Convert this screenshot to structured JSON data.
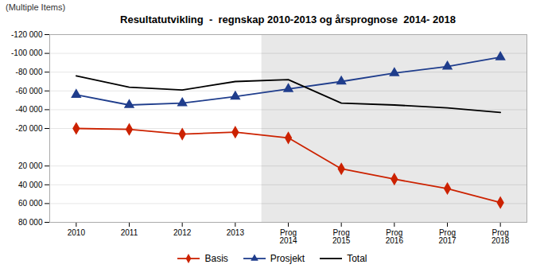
{
  "chart_data": {
    "type": "line",
    "title": "Resultatutvikling  -  regnskap 2010-2013 og årsprognose  2014- 2018",
    "subtitle": "(Multiple Items)",
    "categories": [
      "2010",
      "2011",
      "2012",
      "2013",
      "Prog\n2014",
      "Prog\n2015",
      "Prog\n2016",
      "Prog\n2017",
      "Prog\n2018"
    ],
    "series": [
      {
        "name": "Basis",
        "color": "#cc2200",
        "marker": "diamond",
        "values": [
          -20000,
          -19000,
          -14000,
          -16000,
          -10000,
          23000,
          34000,
          44000,
          59000
        ]
      },
      {
        "name": "Prosjekt",
        "color": "#1f3d8c",
        "marker": "triangle",
        "values": [
          -56000,
          -45000,
          -47000,
          -54000,
          -62000,
          -70000,
          -79000,
          -86000,
          -96000
        ]
      },
      {
        "name": "Total",
        "color": "#000000",
        "values": [
          -76000,
          -64000,
          -61000,
          -70000,
          -72000,
          -47000,
          -45000,
          -42000,
          -37000
        ]
      }
    ],
    "ylim": [
      80000,
      -120000
    ],
    "yticks": [
      {
        "value": -120000,
        "label": "-120 000"
      },
      {
        "value": -100000,
        "label": "-100 000"
      },
      {
        "value": -80000,
        "label": "-80 000"
      },
      {
        "value": -60000,
        "label": "-60 000"
      },
      {
        "value": -40000,
        "label": "-40 000"
      },
      {
        "value": -20000,
        "label": "-20 000"
      },
      {
        "value": 20000,
        "label": "20 000"
      },
      {
        "value": 40000,
        "label": "40 000"
      },
      {
        "value": 60000,
        "label": "60 000"
      },
      {
        "value": 80000,
        "label": "80 000"
      }
    ],
    "grid": true,
    "legend": "bottom",
    "shaded_region": {
      "from": "Prog\n2014",
      "to": "Prog\n2018",
      "color": "#e8e8e8"
    }
  }
}
